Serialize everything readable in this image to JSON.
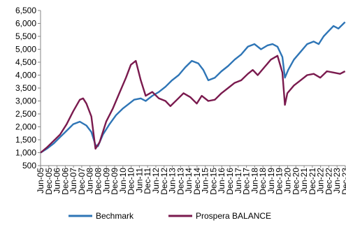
{
  "chart_data": {
    "type": "line",
    "title": "",
    "xlabel": "",
    "ylabel": "",
    "ylim": [
      500,
      6500
    ],
    "yticks": [
      500,
      1000,
      1500,
      2000,
      2500,
      3000,
      3500,
      4000,
      4500,
      5000,
      5500,
      6000,
      6500
    ],
    "ytick_labels": [
      "500",
      "1,000",
      "1,500",
      "2,000",
      "2,500",
      "3,000",
      "3,500",
      "4,000",
      "4,500",
      "5,000",
      "5,500",
      "6,000",
      "6,500"
    ],
    "xlim": [
      2005.417,
      2023.917
    ],
    "x_tick_labels": [
      "Jun-05",
      "Dec-05",
      "Jun-06",
      "Dec-06",
      "Jun-07",
      "Dec-07",
      "Jun-08",
      "Dec-08",
      "Jun-09",
      "Dec-09",
      "Jun-10",
      "Dec-10",
      "Jun-11",
      "Dec-11",
      "Jun-12",
      "Dec-12",
      "Jun-13",
      "Dec-13",
      "Jun-14",
      "Dec-14",
      "Jun-15",
      "Dec-15",
      "Jun-16",
      "Dec-16",
      "Jun-17",
      "Dec-17",
      "Jun-18",
      "Dec-18",
      "Jun-19",
      "Dec-19",
      "Jun-20",
      "Dec-20",
      "Jun-21",
      "Dec-21",
      "Jun-22",
      "Dec-22",
      "Jun-23",
      "Dec-23"
    ],
    "grid": false,
    "legend_position": "bottom",
    "series": [
      {
        "name": "Bechmark",
        "color": "#2E75B6",
        "x": [
          2005.42,
          2005.8,
          2006.2,
          2006.6,
          2007.0,
          2007.4,
          2007.8,
          2008.2,
          2008.5,
          2008.75,
          2008.9,
          2009.2,
          2009.6,
          2010.0,
          2010.4,
          2010.8,
          2011.1,
          2011.5,
          2011.8,
          2012.2,
          2012.6,
          2013.0,
          2013.4,
          2013.8,
          2014.2,
          2014.6,
          2015.0,
          2015.3,
          2015.6,
          2016.0,
          2016.4,
          2016.8,
          2017.2,
          2017.6,
          2018.0,
          2018.4,
          2018.8,
          2019.2,
          2019.5,
          2019.8,
          2020.1,
          2020.25,
          2020.45,
          2020.8,
          2021.2,
          2021.6,
          2022.0,
          2022.3,
          2022.6,
          2022.9,
          2023.2,
          2023.5,
          2023.9
        ],
        "y": [
          1000,
          1150,
          1350,
          1600,
          1850,
          2100,
          2200,
          2050,
          1800,
          1300,
          1250,
          1700,
          2100,
          2450,
          2700,
          2900,
          3050,
          3100,
          3000,
          3200,
          3350,
          3550,
          3800,
          4000,
          4300,
          4550,
          4450,
          4200,
          3800,
          3900,
          4150,
          4350,
          4600,
          4800,
          5100,
          5200,
          5000,
          5150,
          5200,
          5100,
          4700,
          3900,
          4200,
          4600,
          4900,
          5200,
          5300,
          5200,
          5500,
          5700,
          5900,
          5800,
          6050
        ]
      },
      {
        "name": "Prospera BALANCE",
        "color": "#7A1A4E",
        "x": [
          2005.42,
          2005.8,
          2006.2,
          2006.6,
          2007.0,
          2007.4,
          2007.8,
          2008.0,
          2008.2,
          2008.5,
          2008.75,
          2009.0,
          2009.4,
          2009.8,
          2010.2,
          2010.6,
          2010.9,
          2011.2,
          2011.5,
          2011.8,
          2012.2,
          2012.6,
          2013.0,
          2013.3,
          2013.7,
          2014.1,
          2014.5,
          2014.9,
          2015.2,
          2015.6,
          2016.0,
          2016.4,
          2016.8,
          2017.2,
          2017.6,
          2018.0,
          2018.3,
          2018.6,
          2019.0,
          2019.4,
          2019.8,
          2020.1,
          2020.25,
          2020.4,
          2020.8,
          2021.2,
          2021.6,
          2022.0,
          2022.4,
          2022.8,
          2023.2,
          2023.6,
          2023.9
        ],
        "y": [
          1000,
          1200,
          1450,
          1700,
          2100,
          2600,
          3050,
          3100,
          2900,
          2400,
          1150,
          1400,
          2200,
          2700,
          3300,
          3900,
          4400,
          4550,
          3800,
          3200,
          3350,
          3100,
          3000,
          2800,
          3050,
          3300,
          3150,
          2900,
          3200,
          3000,
          3050,
          3300,
          3500,
          3700,
          3800,
          4050,
          4200,
          4000,
          4300,
          4600,
          4750,
          4100,
          2850,
          3300,
          3600,
          3800,
          4000,
          4050,
          3900,
          4150,
          4100,
          4050,
          4150
        ]
      }
    ]
  }
}
